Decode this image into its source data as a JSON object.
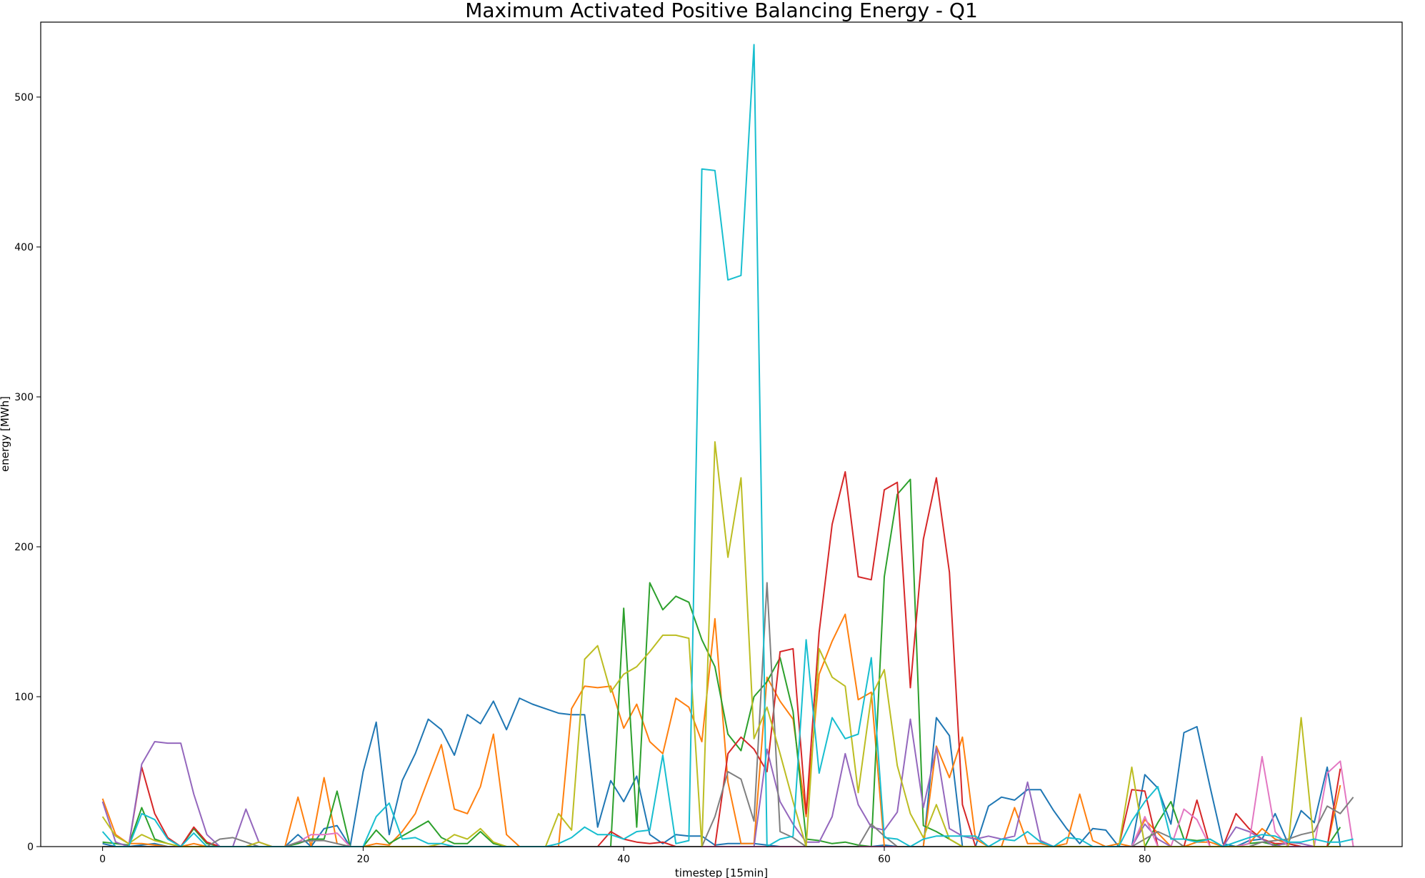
{
  "chart_data": {
    "type": "line",
    "title": "Maximum Activated Positive Balancing Energy - Q1",
    "xlabel": "timestep [15min]",
    "ylabel": "energy [MWh]",
    "xlim": [
      -4.75,
      99.75
    ],
    "ylim": [
      0,
      550
    ],
    "xticks": [
      0,
      20,
      40,
      60,
      80
    ],
    "yticks": [
      0,
      100,
      200,
      300,
      400,
      500
    ],
    "grid": false,
    "legend": "none",
    "series": [
      {
        "color": "#1f77b4",
        "values": [
          2,
          0,
          0,
          1,
          2,
          0,
          0,
          0,
          0,
          0,
          0,
          0,
          0,
          0,
          0,
          8,
          0,
          12,
          14,
          0,
          50,
          83,
          8,
          44,
          62,
          85,
          78,
          61,
          88,
          82,
          97,
          78,
          99,
          95,
          92,
          89,
          88,
          88,
          13,
          44,
          30,
          47,
          8,
          2,
          8,
          7,
          7,
          1,
          2,
          2,
          2,
          1,
          0,
          0,
          0,
          0,
          0,
          0,
          0,
          0,
          1,
          0,
          0,
          0,
          86,
          74,
          0,
          0,
          27,
          33,
          31,
          38,
          38,
          24,
          12,
          2,
          12,
          11,
          0,
          0,
          48,
          39,
          15,
          76,
          80,
          40,
          2,
          0,
          4,
          5,
          22,
          2,
          24,
          16,
          53,
          0
        ]
      },
      {
        "color": "#ff7f0e",
        "values": [
          32,
          8,
          2,
          2,
          1,
          0,
          0,
          2,
          0,
          0,
          0,
          0,
          0,
          0,
          0,
          33,
          0,
          46,
          2,
          0,
          0,
          2,
          1,
          10,
          22,
          45,
          68,
          25,
          22,
          40,
          75,
          8,
          0,
          0,
          0,
          0,
          92,
          107,
          106,
          107,
          79,
          95,
          70,
          62,
          99,
          93,
          70,
          152,
          43,
          2,
          2,
          113,
          97,
          85,
          20,
          115,
          137,
          155,
          98,
          103,
          0,
          0,
          0,
          0,
          67,
          46,
          73,
          5,
          0,
          0,
          26,
          2,
          2,
          0,
          2,
          35,
          4,
          0,
          2,
          0,
          18,
          9,
          0,
          0,
          3,
          3,
          0,
          0,
          2,
          12,
          5,
          2,
          0,
          0,
          0,
          41
        ]
      },
      {
        "color": "#2ca02c",
        "values": [
          3,
          2,
          1,
          26,
          5,
          2,
          0,
          12,
          2,
          0,
          0,
          0,
          0,
          0,
          0,
          2,
          5,
          5,
          37,
          0,
          0,
          11,
          2,
          7,
          12,
          17,
          6,
          2,
          2,
          10,
          2,
          0,
          0,
          0,
          0,
          0,
          0,
          0,
          0,
          0,
          159,
          13,
          176,
          158,
          167,
          163,
          138,
          120,
          75,
          64,
          100,
          110,
          126,
          90,
          5,
          4,
          2,
          3,
          1,
          0,
          180,
          235,
          245,
          14,
          10,
          5,
          0,
          0,
          0,
          0,
          0,
          0,
          0,
          0,
          0,
          0,
          0,
          0,
          0,
          0,
          0,
          16,
          30,
          5,
          4,
          5,
          0,
          0,
          2,
          3,
          1,
          2,
          0,
          0,
          0,
          13
        ]
      },
      {
        "color": "#d62728",
        "values": [
          0,
          0,
          0,
          53,
          22,
          6,
          0,
          13,
          3,
          0,
          0,
          0,
          0,
          0,
          0,
          0,
          0,
          0,
          0,
          0,
          0,
          0,
          0,
          0,
          0,
          0,
          0,
          0,
          0,
          0,
          0,
          0,
          0,
          0,
          0,
          0,
          0,
          0,
          0,
          10,
          5,
          3,
          2,
          3,
          0,
          0,
          0,
          0,
          62,
          73,
          65,
          50,
          130,
          132,
          22,
          143,
          215,
          250,
          180,
          178,
          238,
          243,
          106,
          205,
          246,
          183,
          28,
          0,
          0,
          0,
          0,
          0,
          0,
          0,
          0,
          0,
          0,
          0,
          0,
          38,
          37,
          0,
          0,
          0,
          31,
          0,
          0,
          22,
          12,
          5,
          2,
          2,
          0,
          0,
          0,
          52
        ]
      },
      {
        "color": "#9467bd",
        "values": [
          30,
          3,
          0,
          55,
          70,
          69,
          69,
          35,
          8,
          0,
          0,
          25,
          3,
          0,
          0,
          0,
          0,
          0,
          0,
          0,
          0,
          0,
          0,
          0,
          0,
          0,
          0,
          0,
          0,
          0,
          0,
          0,
          0,
          0,
          0,
          0,
          0,
          0,
          0,
          0,
          0,
          0,
          0,
          0,
          0,
          0,
          0,
          0,
          0,
          0,
          0,
          65,
          30,
          15,
          3,
          3,
          20,
          62,
          28,
          13,
          11,
          23,
          85,
          26,
          66,
          12,
          7,
          5,
          7,
          5,
          7,
          43,
          4,
          0,
          0,
          0,
          0,
          0,
          0,
          0,
          15,
          5,
          0,
          0,
          0,
          0,
          0,
          13,
          10,
          5,
          0,
          3,
          2,
          0,
          0,
          0
        ]
      },
      {
        "color": "#8c564b",
        "values": [
          0,
          0,
          0,
          0,
          0,
          0,
          0,
          0,
          0,
          0,
          0,
          0,
          0,
          0,
          0,
          0,
          0,
          0,
          0,
          0,
          0,
          0,
          0,
          0,
          0,
          0,
          0,
          0,
          0,
          0,
          0,
          0,
          0,
          0,
          0,
          0,
          0,
          0,
          0,
          0,
          0,
          0,
          0,
          0,
          0,
          0,
          0,
          0,
          0,
          0,
          0,
          0,
          0,
          0,
          0,
          0,
          0,
          0,
          0,
          0,
          0,
          0,
          0,
          0,
          0,
          0,
          0,
          0,
          0,
          0,
          0,
          0,
          0,
          0,
          0,
          0,
          0,
          0,
          0,
          0,
          0,
          0,
          0,
          0,
          0,
          0,
          0,
          0,
          0,
          0,
          0,
          0,
          0,
          0,
          0,
          0
        ]
      },
      {
        "color": "#e377c2",
        "values": [
          0,
          0,
          0,
          0,
          0,
          0,
          0,
          0,
          0,
          0,
          0,
          0,
          3,
          0,
          0,
          3,
          8,
          8,
          9,
          0,
          0,
          0,
          0,
          0,
          0,
          0,
          0,
          0,
          0,
          0,
          0,
          0,
          0,
          0,
          0,
          0,
          0,
          0,
          0,
          0,
          0,
          0,
          0,
          0,
          0,
          0,
          0,
          0,
          0,
          0,
          0,
          0,
          0,
          0,
          0,
          0,
          0,
          0,
          0,
          0,
          0,
          0,
          0,
          0,
          0,
          0,
          0,
          0,
          0,
          0,
          0,
          0,
          0,
          0,
          0,
          0,
          0,
          0,
          0,
          0,
          20,
          0,
          0,
          25,
          18,
          0,
          0,
          0,
          2,
          60,
          10,
          0,
          0,
          0,
          49,
          57,
          0
        ]
      },
      {
        "color": "#7f7f7f",
        "values": [
          0,
          0,
          0,
          0,
          0,
          0,
          0,
          0,
          0,
          5,
          6,
          3,
          0,
          0,
          0,
          3,
          4,
          4,
          2,
          0,
          0,
          0,
          0,
          0,
          0,
          0,
          0,
          0,
          0,
          0,
          0,
          0,
          0,
          0,
          0,
          0,
          0,
          0,
          0,
          0,
          0,
          0,
          0,
          0,
          0,
          0,
          0,
          20,
          50,
          45,
          17,
          176,
          10,
          6,
          0,
          0,
          0,
          0,
          0,
          15,
          7,
          0,
          0,
          0,
          0,
          0,
          0,
          0,
          0,
          0,
          0,
          0,
          0,
          0,
          0,
          0,
          0,
          0,
          0,
          0,
          5,
          10,
          6,
          0,
          0,
          0,
          0,
          0,
          0,
          3,
          4,
          5,
          8,
          10,
          27,
          22,
          33
        ]
      },
      {
        "color": "#bcbd22",
        "values": [
          20,
          7,
          2,
          8,
          4,
          2,
          0,
          0,
          0,
          0,
          0,
          0,
          3,
          0,
          0,
          0,
          0,
          0,
          0,
          0,
          0,
          0,
          0,
          0,
          0,
          0,
          2,
          8,
          5,
          12,
          3,
          0,
          0,
          0,
          0,
          22,
          11,
          125,
          134,
          103,
          115,
          120,
          130,
          141,
          141,
          139,
          0,
          270,
          193,
          246,
          72,
          93,
          62,
          30,
          0,
          132,
          113,
          107,
          36,
          100,
          118,
          54,
          22,
          6,
          28,
          5,
          0,
          0,
          0,
          0,
          0,
          0,
          0,
          0,
          0,
          0,
          0,
          0,
          0,
          53,
          0,
          0,
          0,
          0,
          0,
          0,
          0,
          0,
          0,
          0,
          0,
          0,
          86,
          0,
          0,
          0
        ]
      },
      {
        "color": "#17becf",
        "values": [
          10,
          0,
          0,
          22,
          18,
          5,
          0,
          9,
          0,
          0,
          0,
          0,
          0,
          0,
          0,
          0,
          0,
          0,
          0,
          0,
          0,
          20,
          29,
          5,
          6,
          2,
          2,
          0,
          0,
          0,
          0,
          0,
          0,
          0,
          0,
          2,
          6,
          13,
          8,
          8,
          5,
          10,
          11,
          61,
          2,
          4,
          452,
          451,
          378,
          381,
          535,
          0,
          5,
          7,
          138,
          49,
          86,
          72,
          75,
          126,
          6,
          5,
          0,
          5,
          7,
          7,
          7,
          7,
          0,
          5,
          4,
          10,
          3,
          0,
          6,
          5,
          0,
          0,
          0,
          17,
          30,
          40,
          5,
          5,
          3,
          5,
          0,
          3,
          6,
          8,
          7,
          3,
          3,
          5,
          3,
          3,
          5
        ]
      }
    ]
  }
}
